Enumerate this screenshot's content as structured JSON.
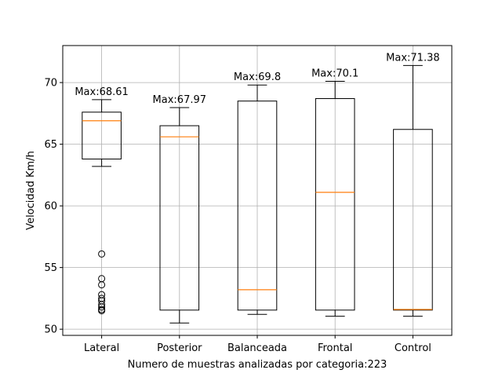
{
  "chart_data": {
    "type": "box",
    "title": "",
    "xlabel": "Numero de muestras analizadas por categoria:223",
    "ylabel": "Velocidad Km/h",
    "ylim": [
      49.5,
      73.0
    ],
    "yticks": [
      50,
      55,
      60,
      65,
      70
    ],
    "grid": true,
    "categories": [
      "Lateral",
      "Posterior",
      "Balanceada",
      "Frontal",
      "Control"
    ],
    "boxes": [
      {
        "category": "Lateral",
        "whisker_low": 63.2,
        "q1": 63.8,
        "median": 66.9,
        "q3": 67.6,
        "whisker_high": 68.61,
        "outliers": [
          56.1,
          54.1,
          53.6,
          52.8,
          52.5,
          52.3,
          52.0,
          51.8,
          51.6,
          51.5
        ]
      },
      {
        "category": "Posterior",
        "whisker_low": 50.5,
        "q1": 51.55,
        "median": 65.6,
        "q3": 66.5,
        "whisker_high": 67.97,
        "outliers": []
      },
      {
        "category": "Balanceada",
        "whisker_low": 51.2,
        "q1": 51.55,
        "median": 53.2,
        "q3": 68.5,
        "whisker_high": 69.8,
        "outliers": []
      },
      {
        "category": "Frontal",
        "whisker_low": 51.05,
        "q1": 51.55,
        "median": 61.1,
        "q3": 68.7,
        "whisker_high": 70.1,
        "outliers": []
      },
      {
        "category": "Control",
        "whisker_low": 51.05,
        "q1": 51.55,
        "median": 51.6,
        "q3": 66.2,
        "whisker_high": 71.38,
        "outliers": []
      }
    ],
    "annotations": [
      "Max:68.61",
      "Max:67.97",
      "Max:69.8",
      "Max:70.1",
      "Max:71.38"
    ],
    "colors": {
      "box": "#000000",
      "median": "#ff7f0e",
      "grid": "#b0b0b0",
      "outlier": "#000000"
    }
  }
}
